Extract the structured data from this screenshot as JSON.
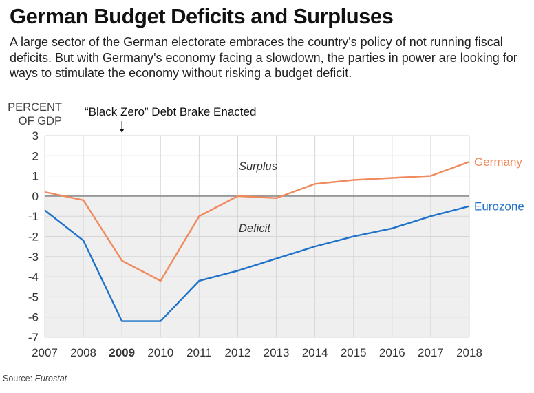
{
  "title": "German Budget Deficits and Surpluses",
  "subtitle": "A large sector of the German electorate embraces the country's policy of not running fiscal deficits. But with Germany's economy facing a slowdown, the parties in power are looking for ways to stimulate the economy without risking a budget deficit.",
  "source": {
    "label": "Source: ",
    "name": "Eurostat"
  },
  "colors": {
    "germany": "#f08a5d",
    "eurozone": "#1f72c9",
    "deficit_bg": "#efefef",
    "zero_line": "#8a8a8a",
    "grid": "#d6d6d6"
  },
  "chart_data": {
    "type": "line",
    "ylabel": [
      "PERCENT",
      "OF GDP"
    ],
    "xlabel": "",
    "x": [
      "2007",
      "2008",
      "2009",
      "2010",
      "2011",
      "2012",
      "2013",
      "2014",
      "2015",
      "2016",
      "2017",
      "2018"
    ],
    "highlight_x": "2009",
    "ylim": [
      -7,
      3
    ],
    "yticks": [
      3,
      2,
      1,
      0,
      -1,
      -2,
      -3,
      -4,
      -5,
      -6,
      -7
    ],
    "grid": true,
    "region_labels": {
      "above_zero": "Surplus",
      "below_zero": "Deficit"
    },
    "annotation": {
      "text": "“Black Zero” Debt Brake Enacted",
      "x": "2009"
    },
    "series": [
      {
        "name": "Germany",
        "values": [
          0.2,
          -0.2,
          -3.2,
          -4.2,
          -1.0,
          0.0,
          -0.1,
          0.6,
          0.8,
          0.9,
          1.0,
          1.7
        ]
      },
      {
        "name": "Eurozone",
        "values": [
          -0.7,
          -2.2,
          -6.2,
          -6.2,
          -4.2,
          -3.7,
          -3.1,
          -2.5,
          -2.0,
          -1.6,
          -1.0,
          -0.5
        ]
      }
    ]
  }
}
